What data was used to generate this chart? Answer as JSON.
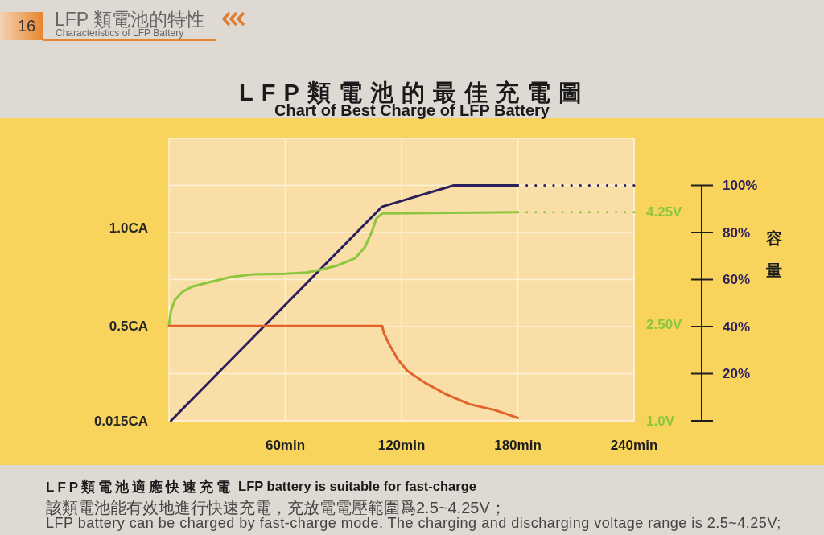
{
  "chart_data": {
    "type": "line",
    "title": "LFP類電池的最佳充電圖",
    "subtitle": "Chart of Best Charge of LFP Battery",
    "y3label": "容量",
    "xlim": [
      0,
      240
    ],
    "xticks": [
      {
        "value": 60,
        "label": "60min"
      },
      {
        "value": 120,
        "label": "120min"
      },
      {
        "value": 180,
        "label": "180min"
      },
      {
        "value": 240,
        "label": "240min"
      }
    ],
    "ylim": [
      0.015,
      1.46
    ],
    "yticks": [
      {
        "value": 0.015,
        "label": "0.015CA"
      },
      {
        "value": 0.5,
        "label": "0.5CA"
      },
      {
        "value": 1.0,
        "label": "1.0CA"
      }
    ],
    "y2lim": [
      1.0,
      5.4
    ],
    "y2ticks": [
      {
        "value": 1.0,
        "label": "1.0V"
      },
      {
        "value": 2.5,
        "label": "2.50V"
      },
      {
        "value": 4.25,
        "label": "4.25V"
      }
    ],
    "y3lim": [
      0,
      120
    ],
    "y3ticks": [
      {
        "value": 0,
        "label": null
      },
      {
        "value": 20,
        "label": "20%"
      },
      {
        "value": 40,
        "label": "40%"
      },
      {
        "value": 60,
        "label": "60%"
      },
      {
        "value": 80,
        "label": "80%"
      },
      {
        "value": 100,
        "label": "100%"
      }
    ],
    "grid": true,
    "line_style": "solid",
    "series": [
      {
        "color": "#2b1f5c",
        "axis": "y3",
        "x": [
          1,
          110,
          147,
          180
        ],
        "values": [
          0,
          91,
          100,
          100
        ]
      },
      {
        "color": "#2b1f5c",
        "axis": "y3",
        "line_style": "dotted",
        "x": [
          180,
          240
        ],
        "values": [
          100,
          100
        ]
      },
      {
        "color": "#8cc63f",
        "axis": "y2",
        "x": [
          0,
          1,
          3,
          7,
          12,
          21,
          32,
          43,
          60,
          71,
          79,
          87,
          96,
          101,
          105,
          107,
          110,
          180
        ],
        "values": [
          2.5,
          2.71,
          2.88,
          3.01,
          3.09,
          3.16,
          3.24,
          3.28,
          3.29,
          3.31,
          3.36,
          3.42,
          3.53,
          3.7,
          3.97,
          4.15,
          4.23,
          4.25
        ]
      },
      {
        "color": "#8cc63f",
        "axis": "y2",
        "line_style": "dotted",
        "x": [
          180,
          240
        ],
        "values": [
          4.25,
          4.25
        ]
      },
      {
        "color": "#e2622a",
        "axis": "y",
        "x": [
          0,
          110,
          111,
          114,
          118,
          123,
          132,
          143,
          155,
          168,
          180
        ],
        "values": [
          0.5,
          0.5,
          0.46,
          0.4,
          0.33,
          0.27,
          0.21,
          0.15,
          0.1,
          0.07,
          0.03
        ]
      }
    ],
    "annotations": [
      "16",
      "LFP 類電池的特性",
      "Characteristics of LFP Battery",
      "LFP類電池適應快速充電",
      "LFP battery is suitable for fast-charge",
      "該類電池能有效地進行快速充電，充放電電壓範圍爲2.5~4.25V；",
      "LFP battery can be charged by fast-charge mode. The charging and discharging voltage range is 2.5~4.25V;"
    ]
  }
}
